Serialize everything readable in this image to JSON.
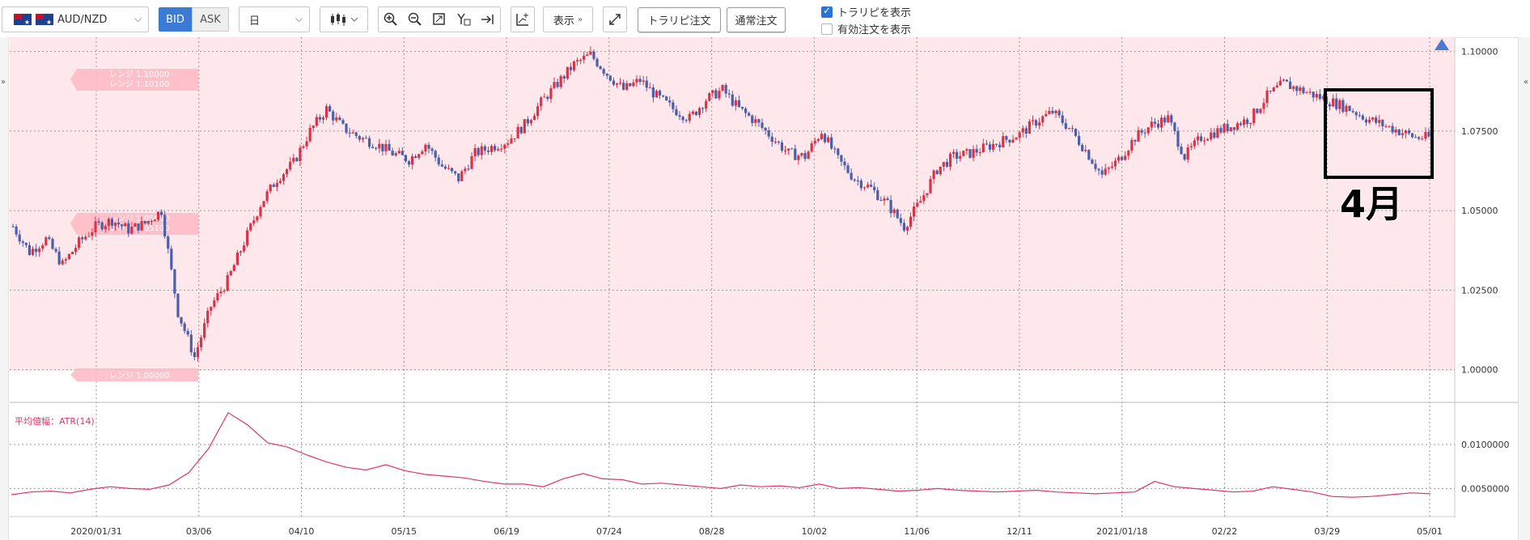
{
  "toolbar": {
    "symbol": "AUD/NZD",
    "bid_label": "BID",
    "ask_label": "ASK",
    "timeframe": "日",
    "display_label": "表示",
    "trailing_order_label": "トラリピ注文",
    "normal_order_label": "通常注文",
    "show_trailing_label": "トラリピを表示",
    "show_trailing_checked": true,
    "show_active_orders_label": "有効注文を表示",
    "show_active_orders_checked": false
  },
  "range_labels": [
    "レンジ 1.10000",
    "レンジ 1.10100",
    "レンジ 1.05000",
    "レンジ 1.05100",
    "レンジ 1.00000"
  ],
  "annotation": "4月",
  "colors": {
    "up": "#d9334a",
    "down": "#4a5fa8",
    "range_fill": "#ffe8ec",
    "atr_line": "#e0336e",
    "accent": "#3b7bd6"
  },
  "chart_data": [
    {
      "type": "candlestick",
      "series_name": "AUD/NZD",
      "y_ticks": [
        "1.10000",
        "1.07500",
        "1.05000",
        "1.02500",
        "1.00000"
      ],
      "ylim": [
        0.9905,
        1.1045
      ],
      "x_ticks": [
        "2020/01/31",
        "03/06",
        "04/10",
        "05/15",
        "06/19",
        "07/24",
        "08/28",
        "10/02",
        "11/06",
        "12/11",
        "2021/01/18",
        "02/22",
        "03/29",
        "05/01"
      ],
      "close_by_week": [
        1.045,
        1.037,
        1.041,
        1.033,
        1.04,
        1.045,
        1.047,
        1.044,
        1.046,
        1.05,
        1.018,
        1.004,
        1.02,
        1.028,
        1.04,
        1.052,
        1.06,
        1.065,
        1.075,
        1.082,
        1.076,
        1.073,
        1.071,
        1.068,
        1.066,
        1.071,
        1.064,
        1.06,
        1.068,
        1.07,
        1.072,
        1.077,
        1.084,
        1.09,
        1.096,
        1.099,
        1.093,
        1.088,
        1.091,
        1.086,
        1.082,
        1.079,
        1.085,
        1.088,
        1.082,
        1.078,
        1.073,
        1.068,
        1.067,
        1.075,
        1.066,
        1.06,
        1.057,
        1.052,
        1.045,
        1.053,
        1.063,
        1.067,
        1.068,
        1.07,
        1.072,
        1.074,
        1.078,
        1.081,
        1.076,
        1.069,
        1.061,
        1.066,
        1.073,
        1.077,
        1.079,
        1.067,
        1.073,
        1.075,
        1.077,
        1.079,
        1.086,
        1.09,
        1.088,
        1.086,
        1.084,
        1.082,
        1.079,
        1.077,
        1.075,
        1.073
      ]
    },
    {
      "type": "line",
      "title": "平均値幅：ATR(14)",
      "y_ticks": [
        "0.0100000",
        "0.0050000"
      ],
      "ylim": [
        0.002,
        0.0145
      ],
      "values": [
        0.0043,
        0.0046,
        0.0047,
        0.0045,
        0.0049,
        0.0052,
        0.005,
        0.0049,
        0.0054,
        0.0068,
        0.0095,
        0.0136,
        0.0122,
        0.0102,
        0.0097,
        0.0088,
        0.008,
        0.0074,
        0.0071,
        0.0077,
        0.007,
        0.0066,
        0.0064,
        0.0062,
        0.0058,
        0.0055,
        0.0055,
        0.0052,
        0.0061,
        0.0067,
        0.0061,
        0.006,
        0.0055,
        0.0056,
        0.0054,
        0.0052,
        0.005,
        0.0054,
        0.0052,
        0.0053,
        0.0051,
        0.0055,
        0.005,
        0.0051,
        0.0049,
        0.0047,
        0.0048,
        0.005,
        0.0048,
        0.0047,
        0.0046,
        0.0047,
        0.0048,
        0.0046,
        0.0045,
        0.0044,
        0.0045,
        0.0046,
        0.0058,
        0.0052,
        0.005,
        0.0048,
        0.0046,
        0.0047,
        0.0052,
        0.0049,
        0.0046,
        0.0041,
        0.004,
        0.0041,
        0.0043,
        0.0045,
        0.0044
      ]
    }
  ]
}
